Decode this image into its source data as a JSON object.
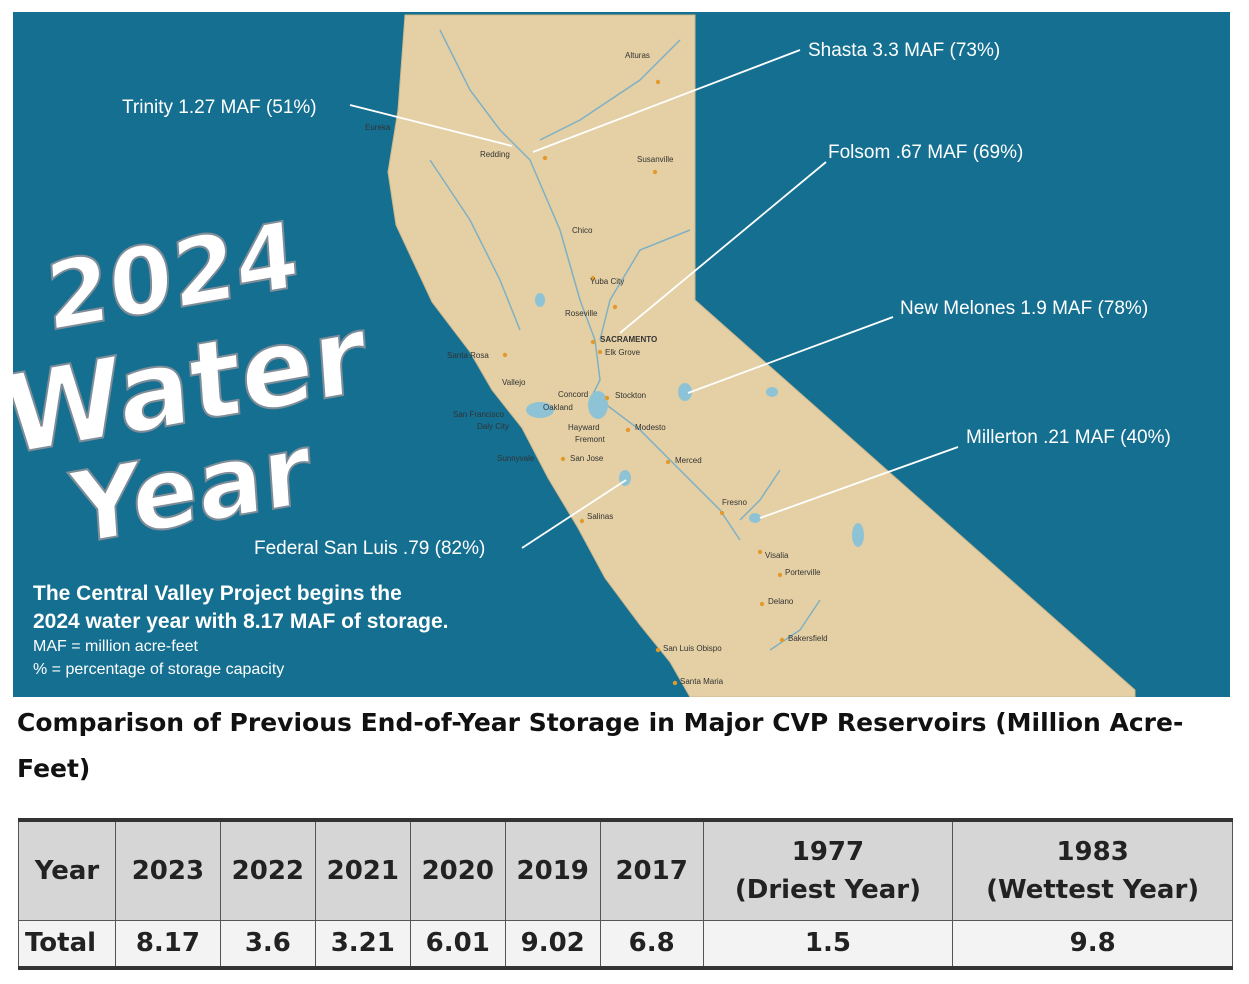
{
  "map": {
    "title": [
      "2024",
      "Water",
      "Year"
    ],
    "reservoirs": [
      "Trinity 1.27 MAF (51%)",
      "Shasta 3.3 MAF (73%)",
      "Folsom .67 MAF (69%)",
      "New Melones 1.9 MAF (78%)",
      "Millerton .21 MAF (40%)",
      "Federal San Luis .79 (82%)"
    ],
    "caption": [
      "The Central Valley Project begins the",
      "2024 water year with 8.17 MAF of storage.",
      "MAF = million acre-feet",
      "% = percentage of storage capacity"
    ],
    "cities": [
      "Alturas",
      "Eureka",
      "Redding",
      "Susanville",
      "Chico",
      "Yuba City",
      "Roseville",
      "SACRAMENTO",
      "Elk Grove",
      "Santa Rosa",
      "Vallejo",
      "Concord",
      "Oakland",
      "San Francisco",
      "Daly City",
      "Hayward",
      "Fremont",
      "Stockton",
      "Modesto",
      "Sunnyvale",
      "San Jose",
      "Merced",
      "Salinas",
      "Fresno",
      "Visalia",
      "Porterville",
      "Delano",
      "Bakersfield",
      "San Luis Obispo",
      "Santa Maria"
    ]
  },
  "heading": "Comparison of Previous End-of-Year Storage in Major CVP Reservoirs (Million Acre-Feet)",
  "table": {
    "header": [
      [
        "Year"
      ],
      [
        "2023"
      ],
      [
        "2022"
      ],
      [
        "2021"
      ],
      [
        "2020"
      ],
      [
        "2019"
      ],
      [
        "2017"
      ],
      [
        "1977",
        "(Driest Year)"
      ],
      [
        "1983",
        "(Wettest Year)"
      ]
    ],
    "rows": [
      [
        "Total",
        "8.17",
        "3.6",
        "3.21",
        "6.01",
        "9.02",
        "6.8",
        "1.5",
        "9.8"
      ]
    ]
  }
}
